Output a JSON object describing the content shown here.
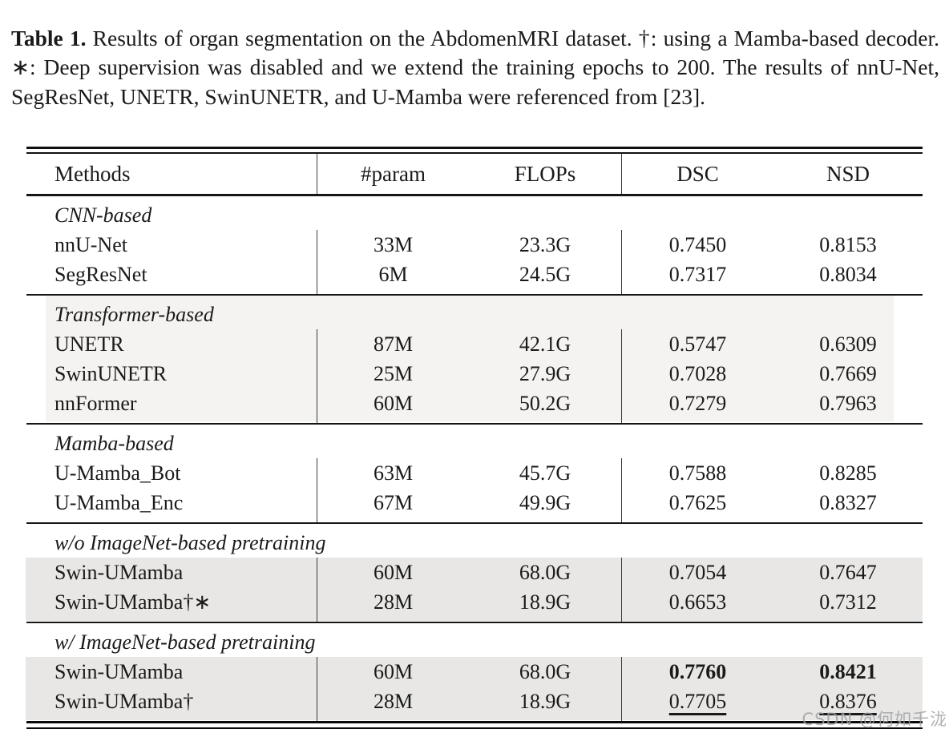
{
  "caption": {
    "label": "Table 1.",
    "text": "Results of organ segmentation on the AbdomenMRI dataset. †: using a Mamba-based decoder. ∗: Deep supervision was disabled and we extend the training epochs to 200. The results of nnU-Net, SegResNet, UNETR, SwinUNETR, and U-Mamba were referenced from [23]."
  },
  "table": {
    "columns": [
      "Methods",
      "#param",
      "FLOPs",
      "DSC",
      "NSD"
    ],
    "sections": [
      {
        "label": "CNN-based",
        "highlight": "none",
        "rows": [
          {
            "method": "nnU-Net",
            "param": "33M",
            "flops": "23.3G",
            "dsc": "0.7450",
            "nsd": "0.8153",
            "dsc_style": "normal",
            "nsd_style": "normal"
          },
          {
            "method": "SegResNet",
            "param": "6M",
            "flops": "24.5G",
            "dsc": "0.7317",
            "nsd": "0.8034",
            "dsc_style": "normal",
            "nsd_style": "normal"
          }
        ]
      },
      {
        "label": "Transformer-based",
        "highlight": "section",
        "rows": [
          {
            "method": "UNETR",
            "param": "87M",
            "flops": "42.1G",
            "dsc": "0.5747",
            "nsd": "0.6309",
            "dsc_style": "normal",
            "nsd_style": "normal"
          },
          {
            "method": "SwinUNETR",
            "param": "25M",
            "flops": "27.9G",
            "dsc": "0.7028",
            "nsd": "0.7669",
            "dsc_style": "normal",
            "nsd_style": "normal"
          },
          {
            "method": "nnFormer",
            "param": "60M",
            "flops": "50.2G",
            "dsc": "0.7279",
            "nsd": "0.7963",
            "dsc_style": "normal",
            "nsd_style": "normal"
          }
        ]
      },
      {
        "label": "Mamba-based",
        "highlight": "none",
        "rows": [
          {
            "method": "U-Mamba_Bot",
            "param": "63M",
            "flops": "45.7G",
            "dsc": "0.7588",
            "nsd": "0.8285",
            "dsc_style": "normal",
            "nsd_style": "normal"
          },
          {
            "method": "U-Mamba_Enc",
            "param": "67M",
            "flops": "49.9G",
            "dsc": "0.7625",
            "nsd": "0.8327",
            "dsc_style": "normal",
            "nsd_style": "normal"
          }
        ]
      },
      {
        "label": "w/o ImageNet-based pretraining",
        "highlight": "rows",
        "rows": [
          {
            "method": "Swin-UMamba",
            "param": "60M",
            "flops": "68.0G",
            "dsc": "0.7054",
            "nsd": "0.7647",
            "dsc_style": "normal",
            "nsd_style": "normal"
          },
          {
            "method": "Swin-UMamba†∗",
            "param": "28M",
            "flops": "18.9G",
            "dsc": "0.6653",
            "nsd": "0.7312",
            "dsc_style": "normal",
            "nsd_style": "normal"
          }
        ]
      },
      {
        "label": "w/ ImageNet-based pretraining",
        "highlight": "rows",
        "rows": [
          {
            "method": "Swin-UMamba",
            "param": "60M",
            "flops": "68.0G",
            "dsc": "0.7760",
            "nsd": "0.8421",
            "dsc_style": "bold",
            "nsd_style": "bold"
          },
          {
            "method": "Swin-UMamba†",
            "param": "28M",
            "flops": "18.9G",
            "dsc": "0.7705",
            "nsd": "0.8376",
            "dsc_style": "underline",
            "nsd_style": "underline"
          }
        ]
      }
    ]
  },
  "watermark": "CSDN @何如千泷",
  "colors": {
    "page_bg": "#ffffff",
    "text": "#1a1a1a",
    "rule": "#111111",
    "section_highlight": "#f4f3f1",
    "row_highlight": "#e8e7e5",
    "watermark": "#9b9ea0"
  }
}
